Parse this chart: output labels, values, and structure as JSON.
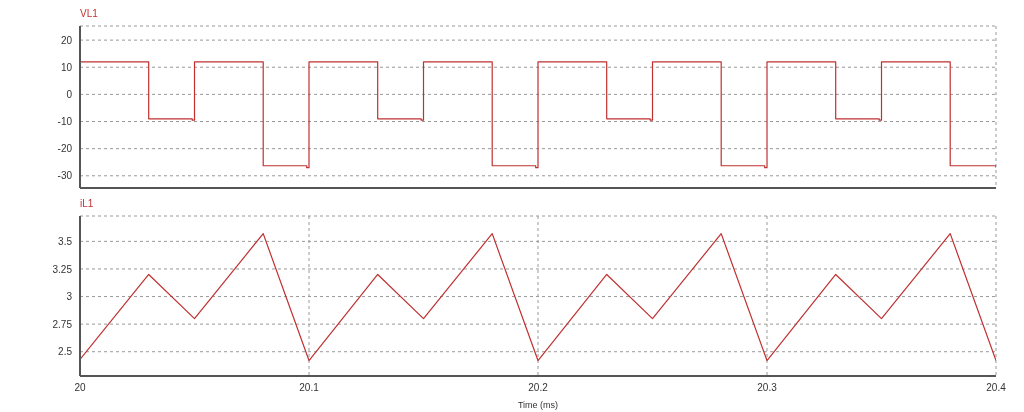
{
  "chart_data": [
    {
      "type": "step",
      "title": "VL1",
      "xlim": [
        20,
        20.4
      ],
      "xticks": [
        20,
        20.1,
        20.2,
        20.3,
        20.4
      ],
      "ylim": [
        -34.5,
        25.2
      ],
      "yticks": [
        -30,
        -20,
        -10,
        0,
        10,
        20
      ],
      "grid": true,
      "tick_labels": "y",
      "series": [
        {
          "color": "#c03030",
          "x": [
            20,
            20.03,
            20.049,
            20.05,
            20.08,
            20.099,
            20.1,
            20.13,
            20.149,
            20.15,
            20.18,
            20.199,
            20.2,
            20.23,
            20.249,
            20.25,
            20.28,
            20.299,
            20.3,
            20.33,
            20.349,
            20.35,
            20.38,
            20.4
          ],
          "values": [
            12,
            -9,
            -9.5,
            12,
            -26.3,
            -27,
            12,
            -9,
            -9.5,
            12,
            -26.3,
            -27,
            12,
            -9,
            -9.5,
            12,
            -26.3,
            -27,
            12,
            -9,
            -9.5,
            12,
            -26.3,
            -27
          ]
        }
      ]
    },
    {
      "type": "line",
      "title": "iL1",
      "xlabel": "Time (ms)",
      "xlim": [
        20,
        20.4
      ],
      "xticks": [
        20,
        20.1,
        20.2,
        20.3,
        20.4
      ],
      "ylim": [
        2.28,
        3.73
      ],
      "yticks": [
        2.5,
        2.75,
        3,
        3.25,
        3.5
      ],
      "grid": true,
      "series": [
        {
          "color": "#c03030",
          "x": [
            20,
            20.03,
            20.05,
            20.08,
            20.1,
            20.13,
            20.15,
            20.18,
            20.2,
            20.23,
            20.25,
            20.28,
            20.3,
            20.33,
            20.35,
            20.38,
            20.4
          ],
          "values": [
            2.43,
            3.2,
            2.8,
            3.57,
            2.42,
            3.2,
            2.8,
            3.57,
            2.42,
            3.2,
            2.8,
            3.57,
            2.42,
            3.2,
            2.8,
            3.57,
            2.42
          ]
        }
      ]
    }
  ]
}
